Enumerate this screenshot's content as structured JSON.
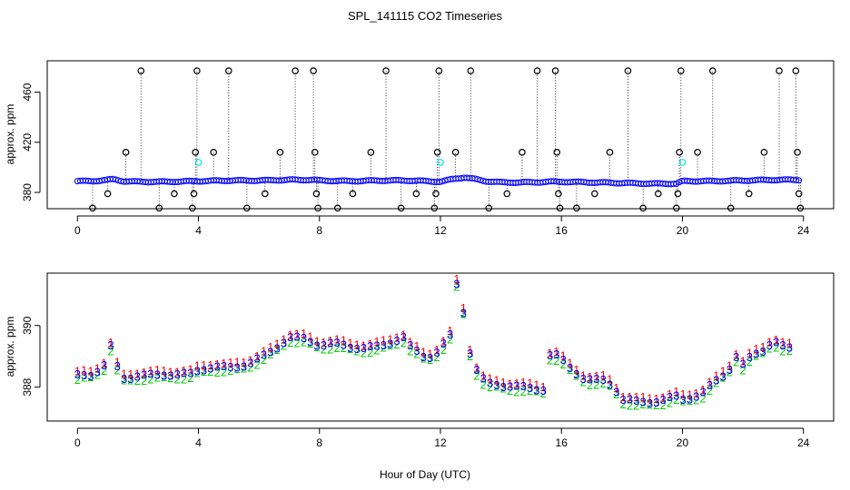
{
  "figure": {
    "title": "SPL_141115  CO2 Timeseries",
    "xlabel": "Hour of Day (UTC)"
  },
  "chart_data": [
    {
      "type": "scatter",
      "panel": "top",
      "ylabel": "approx. ppm",
      "xlim": [
        -1.0,
        25.0
      ],
      "ylim": [
        367,
        485
      ],
      "xticks": [
        0,
        4,
        8,
        12,
        16,
        20,
        24
      ],
      "yticks": [
        380,
        420,
        460
      ],
      "colors": {
        "main": "#0000ff",
        "spike": "#000000",
        "cyan": "#00e5ee",
        "mark": "#ff0000"
      },
      "baseline": [
        [
          0,
          389
        ],
        [
          0.5,
          389
        ],
        [
          1,
          390
        ],
        [
          1.2,
          390.5
        ],
        [
          1.5,
          389
        ],
        [
          2,
          388.5
        ],
        [
          3,
          388.5
        ],
        [
          4,
          389
        ],
        [
          5,
          389.5
        ],
        [
          6,
          389.5
        ],
        [
          7,
          390
        ],
        [
          7.8,
          390
        ],
        [
          8,
          389.5
        ],
        [
          9,
          389
        ],
        [
          10,
          389.5
        ],
        [
          11,
          389.5
        ],
        [
          12,
          388.5
        ],
        [
          12.5,
          391
        ],
        [
          12.8,
          392
        ],
        [
          13.5,
          389
        ],
        [
          14,
          388
        ],
        [
          15,
          388
        ],
        [
          15.6,
          388.5
        ],
        [
          16,
          388.5
        ],
        [
          17,
          388
        ],
        [
          18,
          387.5
        ],
        [
          19,
          387
        ],
        [
          19.8,
          387
        ],
        [
          20,
          389
        ],
        [
          21,
          389
        ],
        [
          22,
          389.5
        ],
        [
          23,
          390
        ],
        [
          23.8,
          390
        ]
      ],
      "spikes": [
        [
          0.5,
          367.5
        ],
        [
          1,
          379
        ],
        [
          1.6,
          412
        ],
        [
          2.1,
          477
        ],
        [
          2.7,
          367.5
        ],
        [
          3.2,
          379
        ],
        [
          3.8,
          367.5
        ],
        [
          3.85,
          379
        ],
        [
          3.9,
          412
        ],
        [
          3.95,
          477
        ],
        [
          4.5,
          412
        ],
        [
          5.0,
          477
        ],
        [
          5.6,
          367.5
        ],
        [
          6.2,
          379
        ],
        [
          6.7,
          412
        ],
        [
          7.2,
          477
        ],
        [
          7.8,
          477
        ],
        [
          7.85,
          412
        ],
        [
          7.9,
          379
        ],
        [
          7.95,
          367.5
        ],
        [
          8.6,
          367.5
        ],
        [
          9.1,
          379
        ],
        [
          9.7,
          412
        ],
        [
          10.2,
          477
        ],
        [
          10.7,
          367.5
        ],
        [
          11.2,
          379
        ],
        [
          11.8,
          367.5
        ],
        [
          11.85,
          379
        ],
        [
          11.9,
          412
        ],
        [
          11.95,
          477
        ],
        [
          12.5,
          412
        ],
        [
          13.0,
          477
        ],
        [
          13.6,
          367.5
        ],
        [
          14.2,
          379
        ],
        [
          14.7,
          412
        ],
        [
          15.2,
          477
        ],
        [
          15.8,
          477
        ],
        [
          15.85,
          412
        ],
        [
          15.9,
          379
        ],
        [
          15.95,
          367.5
        ],
        [
          16.5,
          367.5
        ],
        [
          17.1,
          379
        ],
        [
          17.6,
          412
        ],
        [
          18.2,
          477
        ],
        [
          18.7,
          367.5
        ],
        [
          19.2,
          379
        ],
        [
          19.8,
          367.5
        ],
        [
          19.85,
          379
        ],
        [
          19.9,
          412
        ],
        [
          19.95,
          477
        ],
        [
          20.5,
          412
        ],
        [
          21.0,
          477
        ],
        [
          21.6,
          367.5
        ],
        [
          22.2,
          379
        ],
        [
          22.7,
          412
        ],
        [
          23.2,
          477
        ],
        [
          23.75,
          477
        ],
        [
          23.8,
          412
        ],
        [
          23.85,
          379
        ],
        [
          23.9,
          367.5
        ]
      ],
      "cyan_points": [
        [
          4.0,
          404
        ],
        [
          12.0,
          404
        ],
        [
          20.0,
          404
        ]
      ]
    },
    {
      "type": "line",
      "panel": "bottom",
      "ylabel": "approx. ppm",
      "xlim": [
        -1.0,
        25.0
      ],
      "ylim": [
        386.9,
        391.7
      ],
      "xticks": [
        0,
        4,
        8,
        12,
        16,
        20,
        24
      ],
      "yticks": [
        388,
        390
      ],
      "series": [
        {
          "name": "3",
          "color": "#0000ff",
          "offset": 0
        },
        {
          "name": "1",
          "color": "#ff0000",
          "offset": 0.12
        },
        {
          "name": "2",
          "color": "#00cd00",
          "offset": -0.12
        }
      ],
      "x": [
        0,
        0.5,
        0.9,
        1.0,
        1.2,
        1.4,
        2,
        3,
        3.8,
        4,
        4.5,
        5,
        5.5,
        6,
        6.5,
        7,
        7.5,
        8,
        8.5,
        9,
        9.5,
        10,
        10.5,
        10.8,
        11,
        11.5,
        11.8,
        12,
        12.3,
        12.55,
        12.7,
        13,
        13.3,
        13.6,
        14,
        14.5,
        15,
        15.5,
        15.6,
        15.7,
        16,
        16.3,
        16.7,
        17,
        17.5,
        17.8,
        18,
        18.5,
        19,
        19.5,
        19.9,
        20,
        20.3,
        20.7,
        21,
        21.5,
        21.8,
        22,
        22.3,
        22.7,
        23,
        23.3,
        23.8
      ],
      "values": [
        388.35,
        388.4,
        388.7,
        389.4,
        389.2,
        388.25,
        388.35,
        388.4,
        388.4,
        388.55,
        388.65,
        388.6,
        388.7,
        388.9,
        389.2,
        389.6,
        389.55,
        389.35,
        389.4,
        389.3,
        389.25,
        389.3,
        389.5,
        389.6,
        389.3,
        388.95,
        389.0,
        389.3,
        389.5,
        391.4,
        390.8,
        389.0,
        388.3,
        388.1,
        388.05,
        388.0,
        387.95,
        387.9,
        389.0,
        389.1,
        388.9,
        388.6,
        388.3,
        388.2,
        388.2,
        387.9,
        387.6,
        387.5,
        387.5,
        387.6,
        387.7,
        387.6,
        387.65,
        387.8,
        388.1,
        388.5,
        389.0,
        388.7,
        389.0,
        389.2,
        389.5,
        389.3,
        389.2
      ]
    }
  ]
}
